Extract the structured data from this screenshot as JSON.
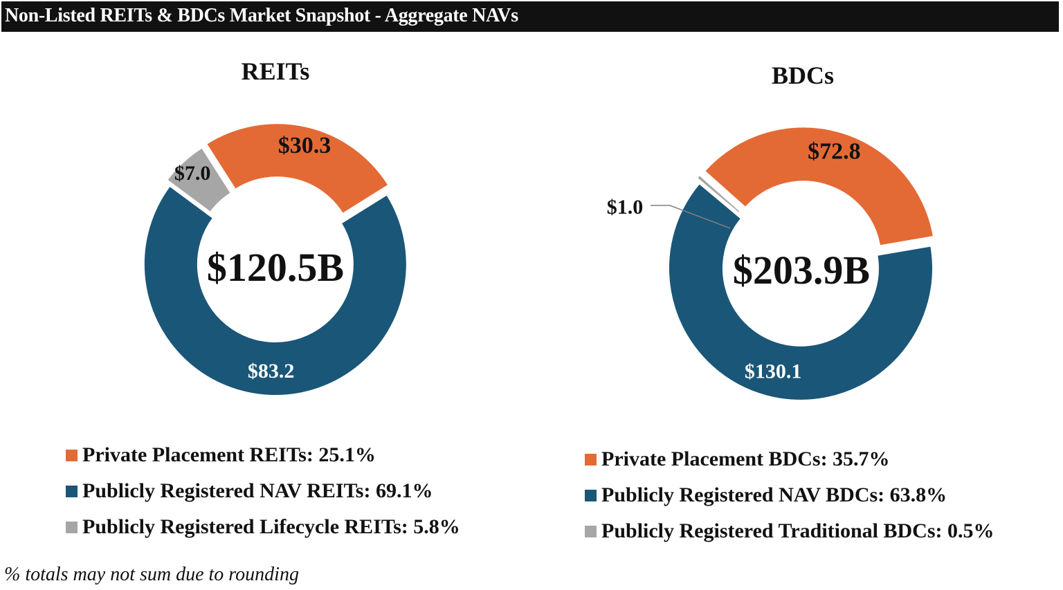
{
  "header": {
    "title": "Non-Listed REITs & BDCs Market Snapshot - Aggregate NAVs"
  },
  "footnote": "% totals may not sum due to rounding",
  "colors": {
    "private_placement": "#E46A35",
    "publicly_registered_nav": "#1A5677",
    "publicly_registered_other": "#A6A6A6",
    "header_bg": "#111111"
  },
  "chart_data": [
    {
      "type": "pie",
      "title": "REITs",
      "center_label": "$120.5B",
      "slices": [
        {
          "label": "$30.3",
          "value": 30.3,
          "color": "#E46A35"
        },
        {
          "label": "$83.2",
          "value": 83.2,
          "color": "#1A5677"
        },
        {
          "label": "$7.0",
          "value": 7.0,
          "color": "#A6A6A6"
        }
      ],
      "legend": [
        {
          "label": "Private Placement REITs: 25.1%",
          "color": "#E46A35"
        },
        {
          "label": "Publicly Registered NAV REITs: 69.1%",
          "color": "#1A5677"
        },
        {
          "label": "Publicly Registered Lifecycle REITs: 5.8%",
          "color": "#A6A6A6"
        }
      ]
    },
    {
      "type": "pie",
      "title": "BDCs",
      "center_label": "$203.9B",
      "slices": [
        {
          "label": "$72.8",
          "value": 72.8,
          "color": "#E46A35"
        },
        {
          "label": "$130.1",
          "value": 130.1,
          "color": "#1A5677"
        },
        {
          "label": "$1.0",
          "value": 1.0,
          "color": "#A6A6A6"
        }
      ],
      "legend": [
        {
          "label": "Private Placement BDCs: 35.7%",
          "color": "#E46A35"
        },
        {
          "label": "Publicly Registered NAV BDCs: 63.8%",
          "color": "#1A5677"
        },
        {
          "label": "Publicly Registered Traditional BDCs: 0.5%",
          "color": "#A6A6A6"
        }
      ]
    }
  ]
}
